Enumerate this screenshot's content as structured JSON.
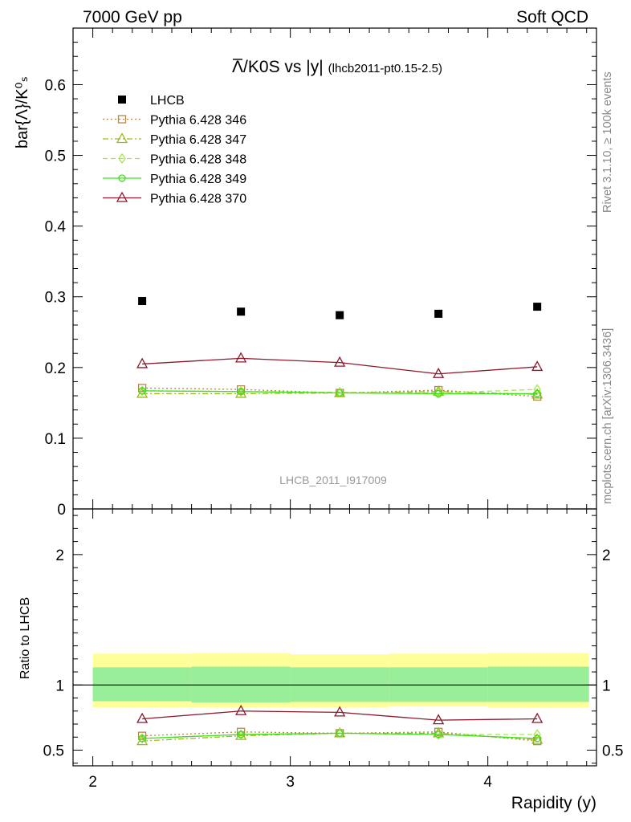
{
  "header": {
    "left": "7000 GeV pp",
    "right": "Soft QCD"
  },
  "side_labels": {
    "rivet": "Rivet 3.1.10, ≥ 100k events",
    "mcplots": "mcplots.cern.ch [arXiv:1306.3436]"
  },
  "chart_data": [
    {
      "type": "scatter",
      "title_main": "Λ/K0S vs |y|",
      "title_sub": "(lhcb2011-pt0.15-2.5)",
      "ylabel": "bar{Λ}/K⁰ₛ",
      "xlabel": "Rapidity (y)",
      "watermark": "LHCB_2011_I917009",
      "xlim": [
        1.9,
        4.55
      ],
      "ylim": [
        0,
        0.68
      ],
      "y_ticks": [
        "0",
        "0.1",
        "0.2",
        "0.3",
        "0.4",
        "0.5",
        "0.6"
      ],
      "x": [
        2.25,
        2.75,
        3.25,
        3.75,
        4.25
      ],
      "legend_placement": "top-left",
      "series": [
        {
          "name": "LHCB",
          "marker": "filled-square",
          "color": "#000000",
          "values": [
            0.294,
            0.279,
            0.274,
            0.276,
            0.286
          ]
        },
        {
          "name": "Pythia 6.428 346",
          "marker": "open-square",
          "linestyle": "dotted",
          "color": "#b5884b",
          "values": [
            0.171,
            0.169,
            0.164,
            0.168,
            0.159
          ]
        },
        {
          "name": "Pythia 6.428 347",
          "marker": "open-triangle",
          "linestyle": "dashdot",
          "color": "#9aba1e",
          "values": [
            0.163,
            0.163,
            0.164,
            0.166,
            0.162
          ]
        },
        {
          "name": "Pythia 6.428 348",
          "marker": "open-diamond",
          "linestyle": "dashed",
          "color": "#a8e64a",
          "values": [
            0.167,
            0.166,
            0.165,
            0.164,
            0.169
          ]
        },
        {
          "name": "Pythia 6.428 349",
          "marker": "open-circle",
          "linestyle": "solid",
          "color": "#3de01a",
          "values": [
            0.167,
            0.166,
            0.164,
            0.163,
            0.163
          ]
        },
        {
          "name": "Pythia 6.428 370",
          "marker": "open-triangle",
          "linestyle": "solid",
          "color": "#8b1a2c",
          "values": [
            0.205,
            0.213,
            0.207,
            0.191,
            0.201
          ]
        }
      ]
    },
    {
      "type": "line",
      "ylabel": "Ratio to LHCB",
      "xlabel": "Rapidity (y)",
      "xlim": [
        1.9,
        4.55
      ],
      "ylim": [
        0.38,
        2.35
      ],
      "y_ticks": [
        "0.5",
        "1",
        "2"
      ],
      "x_ticks": [
        "2",
        "3",
        "4"
      ],
      "x": [
        2.25,
        2.75,
        3.25,
        3.75,
        4.25
      ],
      "bins": [
        [
          2.0,
          2.5
        ],
        [
          2.5,
          3.0
        ],
        [
          3.0,
          3.5
        ],
        [
          3.5,
          4.0
        ],
        [
          4.0,
          4.5
        ]
      ],
      "band_inner": [
        [
          0.875,
          1.135
        ],
        [
          0.865,
          1.14
        ],
        [
          0.87,
          1.135
        ],
        [
          0.87,
          1.135
        ],
        [
          0.87,
          1.14
        ]
      ],
      "band_outer": [
        [
          0.83,
          1.24
        ],
        [
          0.83,
          1.245
        ],
        [
          0.83,
          1.235
        ],
        [
          0.835,
          1.24
        ],
        [
          0.825,
          1.245
        ]
      ],
      "series": [
        {
          "name": "Pythia 6.428 346",
          "color": "#b5884b",
          "values": [
            0.61,
            0.64,
            0.63,
            0.64,
            0.57
          ]
        },
        {
          "name": "Pythia 6.428 347",
          "color": "#9aba1e",
          "values": [
            0.57,
            0.61,
            0.63,
            0.63,
            0.58
          ]
        },
        {
          "name": "Pythia 6.428 348",
          "color": "#a8e64a",
          "values": [
            0.59,
            0.62,
            0.63,
            0.62,
            0.62
          ]
        },
        {
          "name": "Pythia 6.428 349",
          "color": "#3de01a",
          "values": [
            0.59,
            0.62,
            0.63,
            0.62,
            0.59
          ]
        },
        {
          "name": "Pythia 6.428 370",
          "color": "#8b1a2c",
          "values": [
            0.74,
            0.8,
            0.79,
            0.73,
            0.74
          ]
        }
      ]
    }
  ]
}
